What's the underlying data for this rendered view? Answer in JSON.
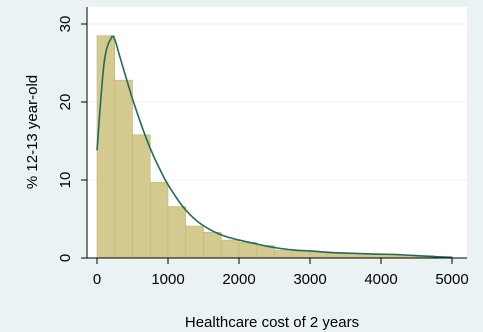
{
  "chart_data": {
    "type": "bar",
    "title": "",
    "xlabel": "Healthcare cost of 2 years",
    "ylabel": "% 12-13 year-old",
    "xlim": [
      0,
      5000
    ],
    "ylim": [
      0,
      30
    ],
    "x_ticks": [
      0,
      1000,
      2000,
      3000,
      4000,
      5000
    ],
    "y_ticks": [
      0,
      10,
      20,
      30
    ],
    "grid": "horizontal",
    "bin_width": 250,
    "histogram": {
      "bin_starts": [
        0,
        250,
        500,
        750,
        1000,
        1250,
        1500,
        1750,
        2000,
        2250,
        2500,
        2750,
        3000,
        3250,
        3500,
        3750,
        4000,
        4250,
        4500,
        4750
      ],
      "values": [
        28.5,
        22.8,
        15.8,
        9.7,
        6.6,
        4.1,
        3.3,
        2.3,
        2.0,
        1.6,
        1.0,
        0.9,
        0.8,
        0.6,
        0.6,
        0.5,
        0.5,
        0.4,
        0.3,
        0.2
      ]
    },
    "density": {
      "x": [
        0,
        100,
        200,
        250,
        300,
        400,
        500,
        600,
        700,
        800,
        900,
        1000,
        1200,
        1400,
        1600,
        1800,
        2000,
        2200,
        2400,
        2600,
        2800,
        3000,
        3300,
        3600,
        3900,
        4200,
        4500,
        4800,
        5000
      ],
      "y": [
        13.8,
        25.0,
        28.2,
        28.0,
        26.5,
        23.4,
        20.4,
        17.7,
        15.2,
        13.0,
        11.1,
        9.4,
        6.7,
        4.8,
        3.6,
        2.8,
        2.3,
        1.9,
        1.5,
        1.2,
        1.0,
        0.9,
        0.7,
        0.6,
        0.5,
        0.45,
        0.3,
        0.15,
        0.05
      ]
    },
    "colors": {
      "background": "#eaf2f3",
      "plot_background": "#ffffff",
      "grid": "#eaf2f3",
      "bar_fill": "#d4c98e",
      "bar_stroke": "#c2b67a",
      "density_line": "#1f6b5c"
    }
  }
}
